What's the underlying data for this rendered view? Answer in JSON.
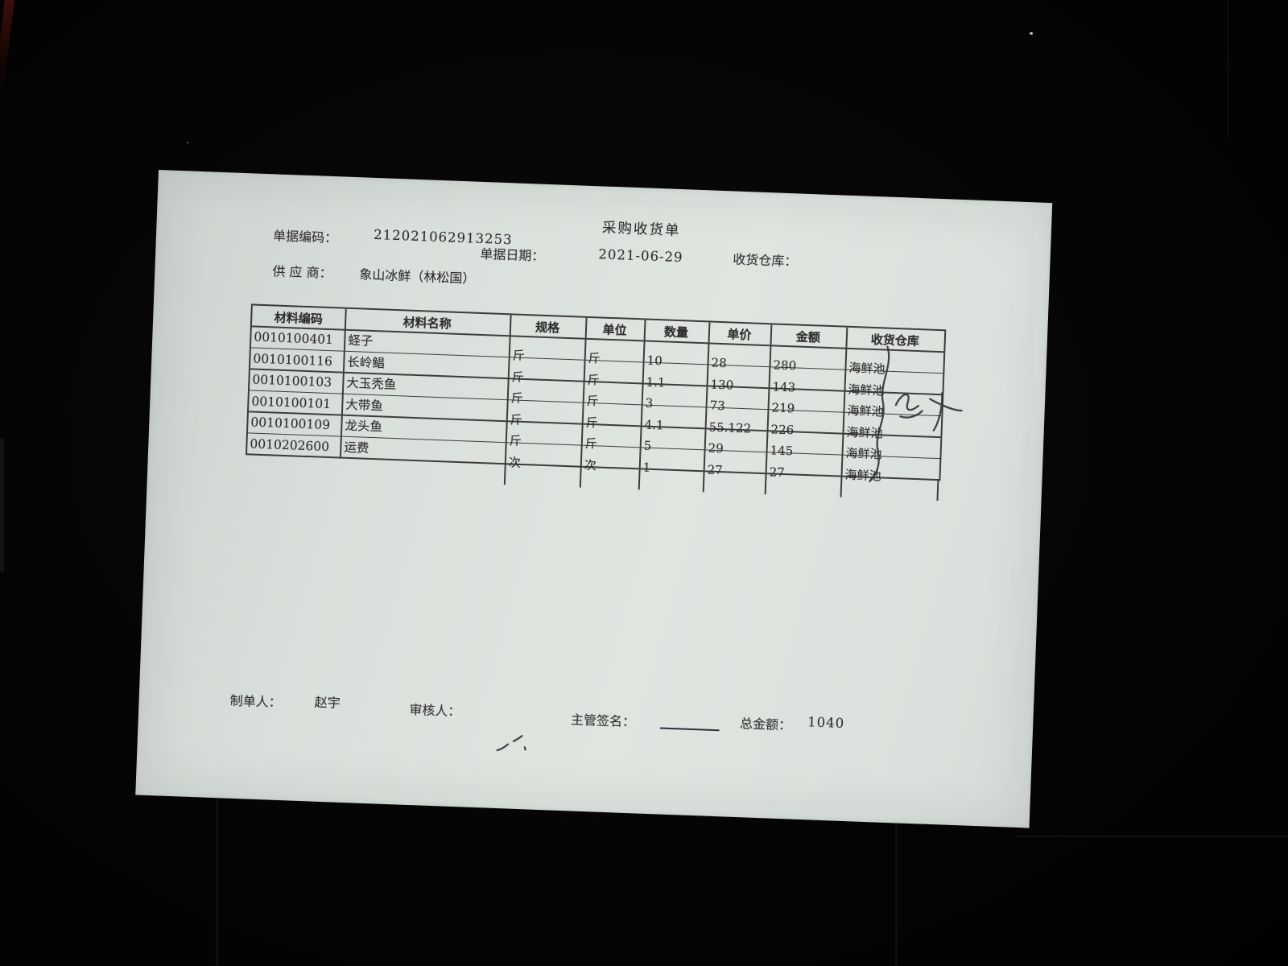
{
  "photo": {
    "background_color": "#040404",
    "paper_color": "#dde2de",
    "ink_color": "#303030",
    "pen_color": "#2c2f36"
  },
  "document": {
    "title": "采购收货单",
    "fields": {
      "doc_no_label": "单据编码：",
      "doc_no": "212021062913253",
      "date_label": "单据日期：",
      "date": "2021-06-29",
      "warehouse_label": "收货仓库：",
      "supplier_label": "供 应 商：",
      "supplier": "象山冰鲜（林松国）"
    },
    "table": {
      "headers": [
        "材料编码",
        "材料名称",
        "规格",
        "单位",
        "数量",
        "单价",
        "金额",
        "收货仓库"
      ],
      "rows": [
        [
          "0010100401",
          "蛏子",
          "斤",
          "斤",
          "10",
          "28",
          "280",
          "海鲜池"
        ],
        [
          "0010100116",
          "长岭鲳",
          "斤",
          "斤",
          "1.1",
          "130",
          "143",
          "海鲜池"
        ],
        [
          "0010100103",
          "大玉秃鱼",
          "斤",
          "斤",
          "3",
          "73",
          "219",
          "海鲜池"
        ],
        [
          "0010100101",
          "大带鱼",
          "斤",
          "斤",
          "4.1",
          "55.122",
          "226",
          "海鲜池"
        ],
        [
          "0010100109",
          "龙头鱼",
          "斤",
          "斤",
          "5",
          "29",
          "145",
          "海鲜池"
        ],
        [
          "0010202600",
          "运费",
          "次",
          "次",
          "1",
          "27",
          "27",
          "海鲜池"
        ]
      ]
    },
    "footer": {
      "maker_label": "制单人：",
      "maker": "赵宇",
      "auditor_label": "审核人：",
      "supervisor_label": "主管签名：",
      "total_label": "总金额：",
      "total": "1040"
    },
    "handwriting": {
      "signature": "张才"
    }
  }
}
